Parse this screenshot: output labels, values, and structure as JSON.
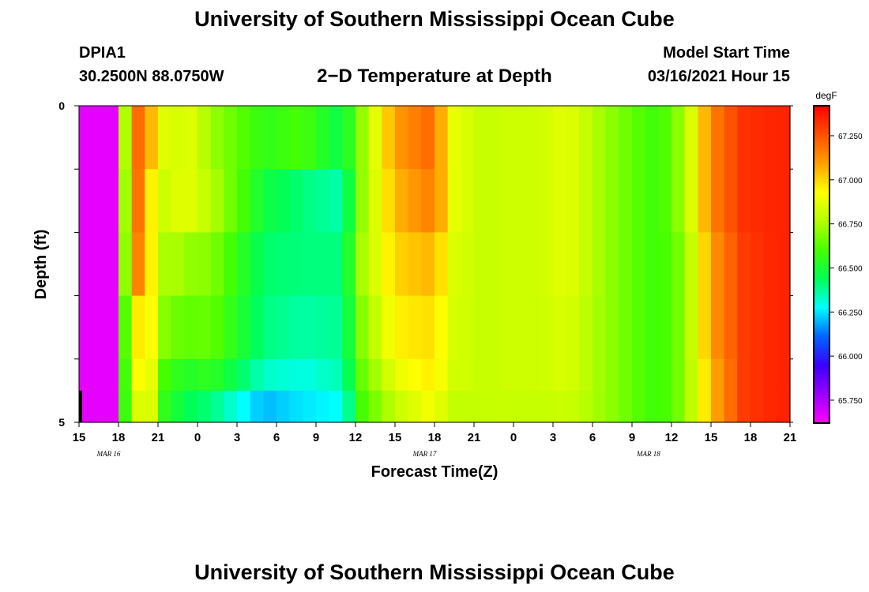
{
  "header": {
    "title": "University of Southern Mississippi Ocean Cube",
    "station_id": "DPIA1",
    "coords": "30.2500N 88.0750W",
    "plot_title": "2−D Temperature at Depth",
    "start_label": "Model Start Time",
    "start_value": "03/16/2021 Hour 15"
  },
  "footer": {
    "title": "University of Southern Mississippi Ocean Cube"
  },
  "chart_data": {
    "type": "heatmap",
    "title": "2−D Temperature at Depth",
    "xlabel": "Forecast Time(Z)",
    "ylabel": "Depth (ft)",
    "x_tick_labels": [
      "15",
      "18",
      "21",
      "0",
      "3",
      "6",
      "9",
      "12",
      "15",
      "18",
      "21",
      "0",
      "3",
      "6",
      "9",
      "12",
      "15",
      "18",
      "21"
    ],
    "date_labels": [
      "MAR 16",
      "MAR 17",
      "MAR 18"
    ],
    "y_tick_labels": [
      "0",
      "5"
    ],
    "ylim": [
      0,
      5
    ],
    "colorbar": {
      "unit": "degF",
      "tick_labels": [
        "67.250",
        "67.000",
        "66.750",
        "66.500",
        "66.250",
        "66.000",
        "65.750"
      ],
      "ticks": [
        67.25,
        67.0,
        66.75,
        66.5,
        66.25,
        66.0,
        65.75
      ],
      "range": [
        65.62,
        67.42
      ],
      "colormap": [
        "#ff00ff",
        "#9a00ff",
        "#3a00ff",
        "#0064ff",
        "#00ffff",
        "#00ff55",
        "#46ff00",
        "#b4ff00",
        "#ffff00",
        "#ffa000",
        "#ff5000",
        "#ff0000"
      ]
    },
    "keyframe_hours": [
      0,
      2.6,
      3,
      4,
      4.5,
      5.5,
      6.5,
      7.3,
      8,
      10,
      14,
      17,
      20,
      21.5,
      24,
      26.5,
      27.5,
      27.7,
      28.5,
      30,
      31,
      32,
      35,
      37,
      40,
      44,
      46,
      48,
      50.5,
      53
    ],
    "depth_rows": [
      {
        "depth_ft": "0–1",
        "values": [
          65.66,
          65.66,
          66.22,
          67.3,
          67.2,
          67.05,
          66.86,
          66.82,
          66.9,
          66.73,
          66.55,
          66.6,
          66.45,
          66.72,
          67.1,
          67.2,
          67.07,
          66.94,
          66.88,
          66.82,
          66.8,
          66.82,
          66.82,
          66.88,
          66.72,
          66.57,
          66.75,
          67.15,
          67.32,
          67.35
        ]
      },
      {
        "depth_ft": "1–2",
        "values": [
          65.66,
          65.66,
          66.22,
          67.25,
          67.18,
          66.95,
          66.82,
          66.85,
          66.88,
          66.78,
          66.48,
          66.4,
          66.35,
          66.72,
          67.05,
          67.15,
          67.07,
          66.94,
          66.88,
          66.82,
          66.8,
          66.82,
          66.82,
          66.88,
          66.72,
          66.57,
          66.75,
          67.15,
          67.32,
          67.35
        ]
      },
      {
        "depth_ft": "2–3",
        "values": [
          65.66,
          65.66,
          66.22,
          67.2,
          67.15,
          66.95,
          66.75,
          66.76,
          66.72,
          66.7,
          66.42,
          66.4,
          66.4,
          66.75,
          67.0,
          67.05,
          66.98,
          66.9,
          66.85,
          66.82,
          66.8,
          66.82,
          66.82,
          66.88,
          66.72,
          66.57,
          66.7,
          67.1,
          67.3,
          67.35
        ]
      },
      {
        "depth_ft": "3–4",
        "values": [
          65.66,
          65.66,
          66.25,
          67.0,
          66.96,
          66.92,
          66.7,
          66.66,
          66.64,
          66.65,
          66.4,
          66.36,
          66.38,
          66.7,
          66.95,
          66.98,
          66.93,
          66.87,
          66.84,
          66.82,
          66.8,
          66.82,
          66.82,
          66.85,
          66.72,
          66.57,
          66.7,
          67.1,
          67.3,
          67.35
        ]
      },
      {
        "depth_ft": "4–4.5",
        "values": [
          65.66,
          65.66,
          66.28,
          66.9,
          66.92,
          66.88,
          66.6,
          66.56,
          66.52,
          66.55,
          66.33,
          66.3,
          66.35,
          66.65,
          66.88,
          66.95,
          66.91,
          66.85,
          66.83,
          66.82,
          66.8,
          66.82,
          66.82,
          66.85,
          66.72,
          66.57,
          66.7,
          67.05,
          67.3,
          67.35
        ]
      },
      {
        "depth_ft": "4.5–5",
        "values": [
          65.66,
          65.66,
          66.35,
          66.8,
          66.85,
          66.85,
          66.55,
          66.5,
          66.45,
          66.4,
          66.2,
          66.25,
          66.28,
          66.6,
          66.8,
          66.9,
          66.86,
          66.82,
          66.8,
          66.8,
          66.8,
          66.81,
          66.8,
          66.82,
          66.72,
          66.57,
          66.7,
          67.05,
          67.3,
          67.35
        ]
      }
    ]
  }
}
